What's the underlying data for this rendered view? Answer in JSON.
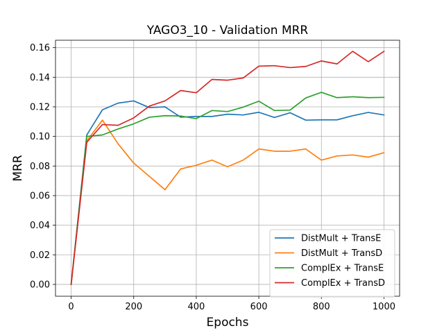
{
  "chart_data": {
    "type": "line",
    "title": "YAGO3_10 - Validation MRR",
    "xlabel": "Epochs",
    "ylabel": "MRR",
    "xlim": [
      -50,
      1050
    ],
    "ylim": [
      -0.008,
      0.165
    ],
    "x_ticks": [
      0,
      200,
      400,
      600,
      800,
      1000
    ],
    "x_tick_labels": [
      "0",
      "200",
      "400",
      "600",
      "800",
      "1000"
    ],
    "y_ticks": [
      0.0,
      0.02,
      0.04,
      0.06,
      0.08,
      0.1,
      0.12,
      0.14,
      0.16
    ],
    "y_tick_labels": [
      "0.00",
      "0.02",
      "0.04",
      "0.06",
      "0.08",
      "0.10",
      "0.12",
      "0.14",
      "0.16"
    ],
    "grid": true,
    "legend_position": "lower-right",
    "x": [
      0,
      50,
      100,
      150,
      200,
      250,
      300,
      350,
      400,
      450,
      500,
      550,
      600,
      650,
      700,
      750,
      800,
      850,
      900,
      950,
      1000
    ],
    "series": [
      {
        "name": "DistMult + TransE",
        "color": "#1f77b4",
        "values": [
          0.0,
          0.101,
          0.118,
          0.1225,
          0.124,
          0.1195,
          0.12,
          0.113,
          0.1135,
          0.1135,
          0.115,
          0.1145,
          0.1163,
          0.1128,
          0.116,
          0.111,
          0.1112,
          0.1112,
          0.114,
          0.1162,
          0.1145
        ]
      },
      {
        "name": "DistMult + TransD",
        "color": "#ff7f0e",
        "values": [
          0.0,
          0.097,
          0.111,
          0.095,
          0.082,
          0.073,
          0.064,
          0.078,
          0.0805,
          0.084,
          0.0795,
          0.084,
          0.0915,
          0.09,
          0.09,
          0.0915,
          0.084,
          0.0868,
          0.0875,
          0.086,
          0.089
        ]
      },
      {
        "name": "ComplEx + TransE",
        "color": "#2ca02c",
        "values": [
          0.0,
          0.1,
          0.101,
          0.105,
          0.1085,
          0.113,
          0.114,
          0.1138,
          0.112,
          0.1175,
          0.1168,
          0.1198,
          0.1238,
          0.1175,
          0.1178,
          0.126,
          0.1298,
          0.1262,
          0.1268,
          0.1262,
          0.1264
        ]
      },
      {
        "name": "ComplEx + TransD",
        "color": "#d62728",
        "values": [
          0.0,
          0.096,
          0.108,
          0.1075,
          0.1125,
          0.1205,
          0.124,
          0.131,
          0.1295,
          0.1385,
          0.138,
          0.1395,
          0.1475,
          0.1478,
          0.1465,
          0.1473,
          0.151,
          0.149,
          0.1575,
          0.1505,
          0.1575
        ]
      }
    ]
  }
}
